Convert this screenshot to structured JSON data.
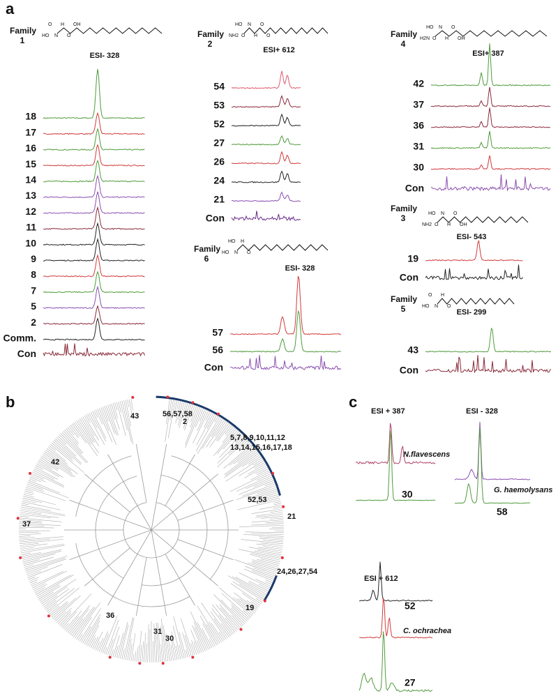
{
  "figure": {
    "a": {
      "label": "a",
      "families": [
        {
          "name": "Family",
          "number": "1",
          "ion": "ESI- 328",
          "atoms": [
            "HO",
            "O",
            "N",
            "H",
            "O",
            "OH"
          ],
          "traces": [
            {
              "label": "18",
              "color": "#4f9a3a"
            },
            {
              "label": "17",
              "color": "#d23a3a"
            },
            {
              "label": "16",
              "color": "#4f9a3a"
            },
            {
              "label": "15",
              "color": "#d23a3a"
            },
            {
              "label": "14",
              "color": "#4f9a3a"
            },
            {
              "label": "13",
              "color": "#8a4fb0"
            },
            {
              "label": "12",
              "color": "#8a4fb0"
            },
            {
              "label": "11",
              "color": "#8a2a3a"
            },
            {
              "label": "10",
              "color": "#222222"
            },
            {
              "label": "9",
              "color": "#222222"
            },
            {
              "label": "8",
              "color": "#d23a3a"
            },
            {
              "label": "7",
              "color": "#4f9a3a"
            },
            {
              "label": "5",
              "color": "#8a4fb0"
            },
            {
              "label": "2",
              "color": "#8a2a3a"
            },
            {
              "label": "Comm.",
              "color": "#222222"
            },
            {
              "label": "Con",
              "color": "#8a2a3a"
            }
          ]
        },
        {
          "name": "Family",
          "number": "2",
          "ion": "ESI+ 612",
          "atoms": [
            "NH2",
            "HO",
            "O",
            "N",
            "H",
            "O",
            "O"
          ],
          "traces": [
            {
              "label": "54",
              "color": "#e05a6a"
            },
            {
              "label": "53",
              "color": "#8a2a3a"
            },
            {
              "label": "52",
              "color": "#222222"
            },
            {
              "label": "27",
              "color": "#4f9a3a"
            },
            {
              "label": "26",
              "color": "#d23a3a"
            },
            {
              "label": "24",
              "color": "#222222"
            },
            {
              "label": "21",
              "color": "#8a4fb0"
            },
            {
              "label": "Con",
              "color": "#6a2a8a"
            }
          ]
        },
        {
          "name": "Family",
          "number": "6",
          "ion": "ESI- 328",
          "atoms": [
            "HO",
            "HO",
            "N",
            "H",
            "O"
          ],
          "traces": [
            {
              "label": "57",
              "color": "#d23a3a"
            },
            {
              "label": "56",
              "color": "#4f9a3a"
            },
            {
              "label": "Con",
              "color": "#8a4fb0"
            }
          ]
        },
        {
          "name": "Family",
          "number": "4",
          "ion": "ESI+ 387",
          "atoms": [
            "H2N",
            "HO",
            "O",
            "N",
            "H",
            "O",
            "OH"
          ],
          "traces": [
            {
              "label": "42",
              "color": "#4f9a3a"
            },
            {
              "label": "37",
              "color": "#8a2a3a"
            },
            {
              "label": "36",
              "color": "#8a2a3a"
            },
            {
              "label": "31",
              "color": "#4f9a3a"
            },
            {
              "label": "30",
              "color": "#d23a3a"
            },
            {
              "label": "Con",
              "color": "#8a4fb0"
            }
          ]
        },
        {
          "name": "Family",
          "number": "3",
          "ion": "ESI- 543",
          "atoms": [
            "NH2",
            "HO",
            "O",
            "N",
            "H",
            "O",
            "OH"
          ],
          "traces": [
            {
              "label": "19",
              "color": "#d23a3a"
            },
            {
              "label": "Con",
              "color": "#222222"
            }
          ]
        },
        {
          "name": "Family",
          "number": "5",
          "ion": "ESI- 299",
          "atoms": [
            "HO",
            "O",
            "N",
            "H",
            "O"
          ],
          "traces": [
            {
              "label": "43",
              "color": "#4f9a3a"
            },
            {
              "label": "Con",
              "color": "#8a2a3a"
            }
          ]
        }
      ]
    },
    "b": {
      "label": "b",
      "labels": [
        "43",
        "56,57,58",
        "2",
        "5,7,8,9,10,11,12",
        "13,14,15,16,17,18",
        "52,53",
        "21",
        "24,26,27,54",
        "19",
        "30",
        "31",
        "36",
        "37",
        "42"
      ]
    },
    "c": {
      "label": "c",
      "plots": [
        {
          "ion": "ESI + 387",
          "species": "N.flavescens",
          "sample": "30"
        },
        {
          "ion": "ESI - 328",
          "species": "G. haemolysans",
          "sample": "58"
        },
        {
          "ion": "ESI + 612",
          "sample": "52",
          "species": "C. ochrachea",
          "sample2": "27"
        }
      ]
    }
  }
}
